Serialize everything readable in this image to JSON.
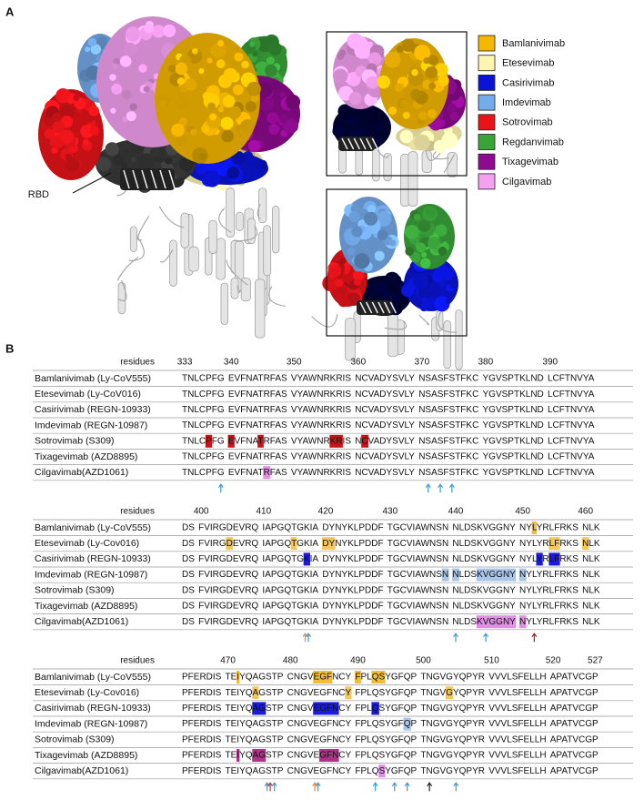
{
  "panel_a": {
    "label": "A",
    "rbd_label": "RBD",
    "legend": [
      {
        "name": "Bamlanivimab",
        "color": "#f5b700"
      },
      {
        "name": "Etesevimab",
        "color": "#fff5b0"
      },
      {
        "name": "Casirivimab",
        "color": "#0a14d8"
      },
      {
        "name": "Imdevimab",
        "color": "#74abea"
      },
      {
        "name": "Sotrovimab",
        "color": "#e8141a"
      },
      {
        "name": "Regdanvimab",
        "color": "#3aa33a"
      },
      {
        "name": "Tixagevimab",
        "color": "#8e0a90"
      },
      {
        "name": "Cilgavimab",
        "color": "#f5a0f0"
      }
    ]
  },
  "panel_b": {
    "label": "B",
    "blocks": [
      {
        "residues_label": "residues",
        "ticks": [
          333,
          340,
          350,
          360,
          370,
          380,
          390
        ],
        "groups": [
          "TNLCPFG",
          "EVFNATRFAS",
          "VYAWNRKRIS",
          "NCVADYSVLY",
          "NSASFSTFKC",
          "YGVSPTKLND",
          "LCFTNVYA"
        ],
        "rows": [
          {
            "name": "Bamlanivimab (Ly-CoV555)",
            "highlight_color": "#f2bd3c",
            "highlights": []
          },
          {
            "name": "Etesevimab (Ly-CoV016)",
            "highlight_color": "#f2c75c",
            "highlights": []
          },
          {
            "name": "Casirivimab (REGN-10933)",
            "highlight_color": "#1a1ae0",
            "highlights": []
          },
          {
            "name": "Imdevimab (REGN-10987)",
            "highlight_color": "#a9c6e8",
            "highlights": []
          },
          {
            "name": "Sotrovimab (S309)",
            "highlight_color": "#c8141a",
            "highlights": [
              337,
              340,
              345,
              356,
              357,
              361
            ]
          },
          {
            "name": "Tixagevimab (AZD8895)",
            "highlight_color": "#b0338a",
            "highlights": []
          },
          {
            "name": "Cilgavimab(AZD1061)",
            "highlight_color": "#e18ee6",
            "highlights": [
              346
            ]
          }
        ],
        "arrows": [
          {
            "residue": 339,
            "colors": [
              "#3a9ad9"
            ]
          },
          {
            "residue": 371,
            "colors": [
              "#3a9ad9"
            ]
          },
          {
            "residue": 373,
            "colors": [
              "#3a9ad9"
            ]
          },
          {
            "residue": 375,
            "colors": [
              "#3a9ad9"
            ]
          }
        ]
      },
      {
        "residues_label": "residues",
        "ticks": [
          400,
          410,
          420,
          430,
          440,
          450,
          460
        ],
        "groups": [
          "DS",
          "FVIRGDEVRQ",
          "IAPGQTGKIA",
          "DYNYKLPDDF",
          "TGCVIAWNSN",
          "NLDSKVGGNY",
          "NYLYRLFRKS",
          "NLK"
        ],
        "rows": [
          {
            "name": "Bamlanivimab (Ly-CoV555)",
            "highlight_color": "#f2bd3c",
            "highlights": [
              452
            ]
          },
          {
            "name": "Etesevimab (Ly-Cov016)",
            "highlight_color": "#f2c75c",
            "highlights": [
              405,
              415,
              420,
              421,
              455,
              456,
              460
            ]
          },
          {
            "name": "Casirivimab (REGN-10933)",
            "highlight_color": "#1a1ae0",
            "highlights": [
              417,
              453,
              455,
              456
            ]
          },
          {
            "name": "Imdevimab (REGN-10987)",
            "highlight_color": "#a9c6e8",
            "highlights": [
              439,
              440,
              444,
              445,
              446,
              447,
              448,
              449,
              450
            ]
          },
          {
            "name": "Sotrovimab (S309)",
            "highlight_color": "#c8141a",
            "highlights": []
          },
          {
            "name": "Tixagevimab (AZD8895)",
            "highlight_color": "#b0338a",
            "highlights": []
          },
          {
            "name": "Cilgavimab(AZD1061)",
            "highlight_color": "#e18ee6",
            "highlights": [
              444,
              445,
              446,
              447,
              448,
              449,
              450
            ]
          }
        ],
        "arrows": [
          {
            "residue": 417,
            "colors": [
              "#e8883a",
              "#3a9ad9"
            ]
          },
          {
            "residue": 440,
            "colors": [
              "#3a9ad9"
            ]
          },
          {
            "residue": 445,
            "colors": [
              "#3a9ad9"
            ]
          },
          {
            "residue": 452,
            "colors": [
              "#b0141a"
            ]
          }
        ]
      },
      {
        "residues_label": "residues",
        "ticks": [
          470,
          480,
          490,
          500,
          510,
          520,
          527
        ],
        "groups": [
          "PFERDIS",
          "TEIYQAGSTP",
          "CNGVEGFNCY",
          "FPLQSYGFQP",
          "TNGVGYQPYR",
          "VVVLSFELLH",
          "APATVCGP"
        ],
        "rows": [
          {
            "name": "Bamlanivimab (Ly-CoV555)",
            "highlight_color": "#f2bd3c",
            "highlights": [
              472,
              484,
              485,
              486,
              490,
              493,
              494
            ]
          },
          {
            "name": "Etesevimab (Ly-Cov016)",
            "highlight_color": "#f2c75c",
            "highlights": [
              475,
              489,
              504
            ]
          },
          {
            "name": "Casirivimab (REGN-10933)",
            "highlight_color": "#1a1ae0",
            "highlights": [
              475,
              476,
              484,
              485,
              486,
              487,
              493
            ]
          },
          {
            "name": "Imdevimab (REGN-10987)",
            "highlight_color": "#a9c6e8",
            "highlights": [
              498
            ]
          },
          {
            "name": "Sotrovimab (S309)",
            "highlight_color": "#c8141a",
            "highlights": []
          },
          {
            "name": "Tixagevimab (AZD8895)",
            "highlight_color": "#b0338a",
            "highlights": [
              472,
              475,
              476,
              485,
              486,
              487
            ]
          },
          {
            "name": "Cilgavimab(AZD1061)",
            "highlight_color": "#e18ee6",
            "highlights": [
              494
            ]
          }
        ],
        "arrows": [
          {
            "residue": 477,
            "colors": [
              "#3a9ad9",
              "#c0392b"
            ]
          },
          {
            "residue": 478,
            "colors": [
              "#3a9ad9"
            ]
          },
          {
            "residue": 484,
            "colors": [
              "#e8883a",
              "#3a9ad9"
            ]
          },
          {
            "residue": 493,
            "colors": [
              "#3a9ad9"
            ]
          },
          {
            "residue": 496,
            "colors": [
              "#3a9ad9"
            ]
          },
          {
            "residue": 498,
            "colors": [
              "#3a9ad9"
            ]
          },
          {
            "residue": 501,
            "colors": [
              "#222222"
            ]
          },
          {
            "residue": 505,
            "colors": [
              "#3a9ad9"
            ]
          }
        ]
      }
    ]
  }
}
